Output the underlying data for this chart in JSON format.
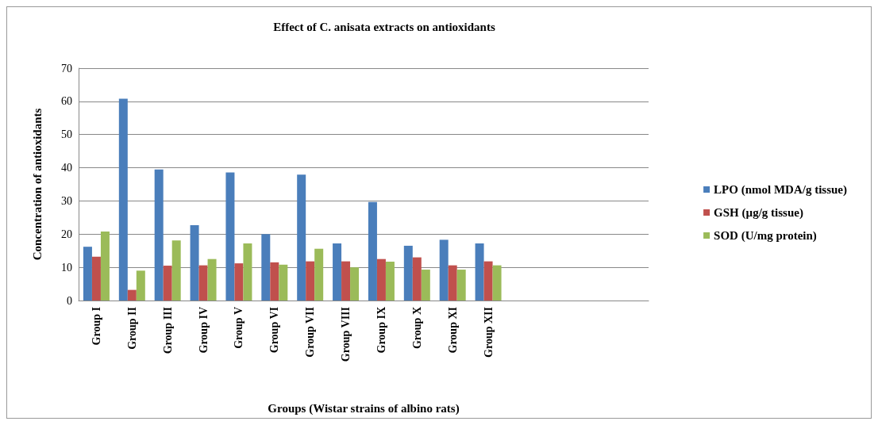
{
  "chart_data": {
    "type": "bar",
    "title": "Effect of C. anisata extracts on antioxidants",
    "xlabel": "Groups (Wistar strains of albino rats)",
    "ylabel": "Concentration of antioxidants",
    "categories": [
      "Group I",
      "Group II",
      "Group III",
      "Group IV",
      "Group V",
      "Group VI",
      "Group VII",
      "Group VIII",
      "Group IX",
      "Group X",
      "Group XI",
      "Group XII",
      null,
      null,
      null,
      null
    ],
    "series": [
      {
        "name": "LPO (nmol MDA/g tissue)",
        "color": "#4a7ebb",
        "values": [
          16.2,
          60.8,
          39.5,
          22.7,
          38.6,
          20.0,
          37.9,
          17.2,
          29.7,
          16.5,
          18.3,
          17.2,
          null,
          null,
          null,
          null
        ]
      },
      {
        "name": "GSH (µg/g tissue)",
        "color": "#c0504d",
        "values": [
          13.2,
          3.2,
          10.5,
          10.6,
          11.2,
          11.5,
          11.8,
          11.8,
          12.5,
          13.0,
          10.6,
          11.8,
          null,
          null,
          null,
          null
        ]
      },
      {
        "name": "SOD (U/mg protein)",
        "color": "#9bbb59",
        "values": [
          20.8,
          9.0,
          18.1,
          12.5,
          17.2,
          10.8,
          15.6,
          10.0,
          11.7,
          9.3,
          9.3,
          10.6,
          null,
          null,
          null,
          null
        ]
      }
    ],
    "ylim": [
      0,
      70
    ],
    "yticks": [
      0,
      10,
      20,
      30,
      40,
      50,
      60,
      70
    ],
    "grid": "y",
    "legend": "right"
  }
}
